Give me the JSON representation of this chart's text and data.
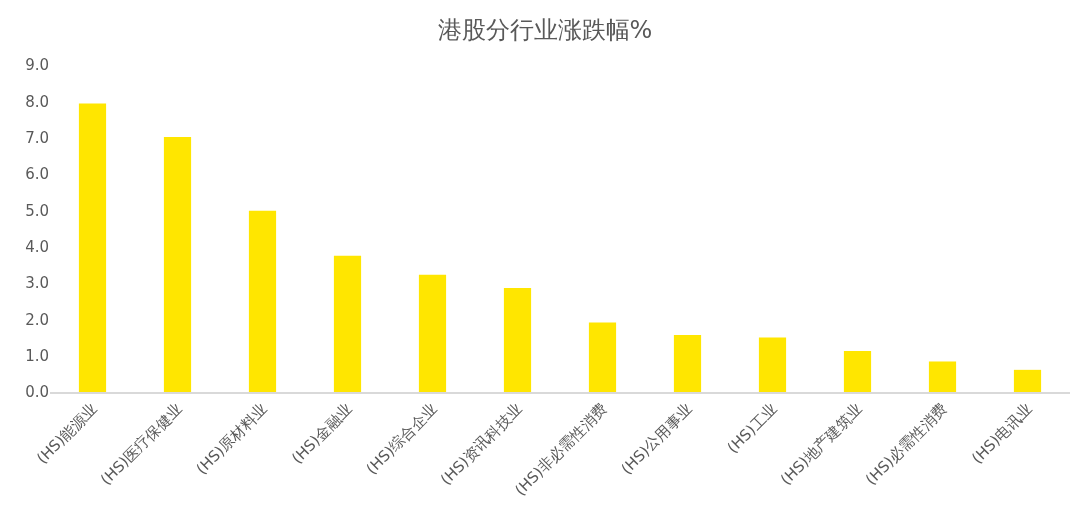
{
  "chart_data": {
    "type": "bar",
    "title": "港股分行业涨跌幅%",
    "categories": [
      "(HS)能源业",
      "(HS)医疗保健业",
      "(HS)原材料业",
      "(HS)金融业",
      "(HS)综合企业",
      "(HS)资讯科技业",
      "(HS)非必需性消费",
      "(HS)公用事业",
      "(HS)工业",
      "(HS)地产建筑业",
      "(HS)必需性消费",
      "(HS)电讯业"
    ],
    "values": [
      7.94,
      7.02,
      4.99,
      3.75,
      3.23,
      2.86,
      1.91,
      1.57,
      1.5,
      1.13,
      0.84,
      0.61
    ],
    "color": "#ffe600",
    "ylim": [
      0,
      9
    ],
    "yticks": [
      {
        "value": 0,
        "label": "0.0"
      },
      {
        "value": 1,
        "label": "1.0"
      },
      {
        "value": 2,
        "label": "2.0"
      },
      {
        "value": 3,
        "label": "3.0"
      },
      {
        "value": 4,
        "label": "4.0"
      },
      {
        "value": 5,
        "label": "5.0"
      },
      {
        "value": 6,
        "label": "6.0"
      },
      {
        "value": 7,
        "label": "7.0"
      },
      {
        "value": 8,
        "label": "8.0"
      },
      {
        "value": 9,
        "label": "9.0"
      }
    ],
    "grid": false
  }
}
